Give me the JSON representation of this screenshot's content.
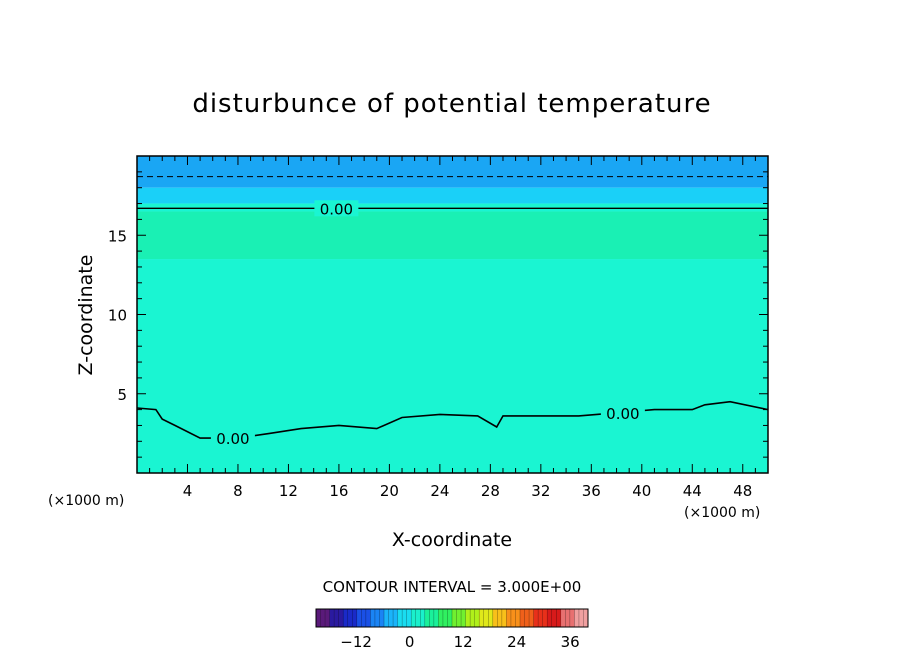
{
  "chart_data": {
    "type": "heatmap",
    "title": "disturbunce of potential temperature",
    "xlabel": "X-coordinate",
    "ylabel": "Z-coordinate",
    "x_unit_left": "(×1000 m)",
    "x_unit_right": "(×1000 m)",
    "xlim": [
      0,
      50
    ],
    "ylim": [
      0,
      20
    ],
    "xticks": [
      4,
      8,
      12,
      16,
      20,
      24,
      28,
      32,
      36,
      40,
      44,
      48
    ],
    "yticks": [
      5,
      10,
      15
    ],
    "contour_interval_text": "CONTOUR INTERVAL = 3.000E+00",
    "contour_labels": [
      {
        "text": "0.00",
        "x": 15.8,
        "z": 16.7
      },
      {
        "text": "0.00",
        "x": 7.6,
        "z": 2.2
      },
      {
        "text": "0.00",
        "x": 38.5,
        "z": 3.8
      }
    ],
    "zero_contour_lower": [
      [
        0,
        4.1
      ],
      [
        1.5,
        4.0
      ],
      [
        2.0,
        3.4
      ],
      [
        3.0,
        3.0
      ],
      [
        5.0,
        2.2
      ],
      [
        8.0,
        2.2
      ],
      [
        10.5,
        2.5
      ],
      [
        13.0,
        2.8
      ],
      [
        16.0,
        3.0
      ],
      [
        19.0,
        2.8
      ],
      [
        21.0,
        3.5
      ],
      [
        24.0,
        3.7
      ],
      [
        27.0,
        3.6
      ],
      [
        28.5,
        2.9
      ],
      [
        29.0,
        3.6
      ],
      [
        32.0,
        3.6
      ],
      [
        35.0,
        3.6
      ],
      [
        38.0,
        3.8
      ],
      [
        41.0,
        4.0
      ],
      [
        44.0,
        4.0
      ],
      [
        45.0,
        4.3
      ],
      [
        47.0,
        4.5
      ],
      [
        50.0,
        4.0
      ]
    ],
    "zero_contour_upper_z": 16.7,
    "dashed_contour_z": 18.7,
    "colorbar": {
      "ticks": [
        -12,
        0,
        12,
        24,
        36
      ],
      "range": [
        -21,
        40
      ],
      "colors": [
        "#5a1a7a",
        "#2a1aa0",
        "#1a2ac8",
        "#1a50e6",
        "#1a84f4",
        "#1ab4fa",
        "#1adcf0",
        "#1af0cc",
        "#1af09a",
        "#30f060",
        "#70f030",
        "#b0f01a",
        "#e0e81a",
        "#f8c01a",
        "#f8901a",
        "#f0601a",
        "#e8301a",
        "#d81a1a",
        "#e87070",
        "#f0a0a0"
      ]
    },
    "field_bands": [
      {
        "zmin": 18.0,
        "zmax": 20.0,
        "color": "#1aa6f4"
      },
      {
        "zmin": 17.0,
        "zmax": 18.0,
        "color": "#1ad0f8"
      },
      {
        "zmin": 13.5,
        "zmax": 16.5,
        "color": "#1af0b4"
      },
      {
        "zmin": 0.0,
        "zmax": 13.5,
        "color": "#1af5d2"
      },
      {
        "zmin": 16.5,
        "zmax": 17.0,
        "color": "#1af5d2"
      }
    ]
  }
}
